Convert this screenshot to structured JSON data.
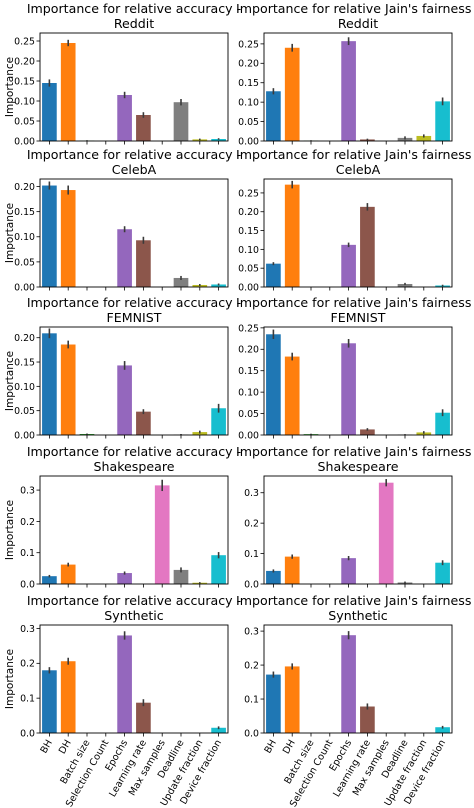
{
  "categories": [
    "BH",
    "DH",
    "Batch size",
    "Selection Count",
    "Epochs",
    "Learning rate",
    "Max samples",
    "Deadline",
    "Update fraction",
    "Device fraction"
  ],
  "colors": [
    "#1f77b4",
    "#ff7f0e",
    "#2ca02c",
    "#d62728",
    "#9467bd",
    "#8c564b",
    "#e377c2",
    "#7f7f7f",
    "#bcbd22",
    "#17becf"
  ],
  "ylabel": "Importance",
  "chart_data": [
    {
      "type": "bar",
      "title_line1": "Importance for relative accuracy -",
      "title_line2": "Reddit",
      "ylabel": "Importance",
      "ylim": [
        0,
        0.27
      ],
      "yticks": [
        0.0,
        0.05,
        0.1,
        0.15,
        0.2,
        0.25
      ],
      "tick_labels": [
        "0.00",
        "0.05",
        "0.10",
        "0.15",
        "0.20",
        "0.25"
      ],
      "values": [
        0.145,
        0.245,
        0.001,
        0.0,
        0.115,
        0.065,
        0.0,
        0.097,
        0.004,
        0.005
      ],
      "errors": [
        0.009,
        0.008,
        0.001,
        0.0,
        0.008,
        0.007,
        0.0,
        0.008,
        0.002,
        0.002
      ]
    },
    {
      "type": "bar",
      "title_line1": "Importance for relative Jain's fairness -",
      "title_line2": "Reddit",
      "ylabel": "",
      "ylim": [
        0,
        0.278
      ],
      "yticks": [
        0.0,
        0.05,
        0.1,
        0.15,
        0.2,
        0.25
      ],
      "tick_labels": [
        "0.00",
        "0.05",
        "0.10",
        "0.15",
        "0.20",
        "0.25"
      ],
      "values": [
        0.128,
        0.24,
        0.001,
        0.0,
        0.257,
        0.004,
        0.0,
        0.008,
        0.013,
        0.102
      ],
      "errors": [
        0.008,
        0.01,
        0.001,
        0.0,
        0.01,
        0.002,
        0.0,
        0.004,
        0.004,
        0.01
      ]
    },
    {
      "type": "bar",
      "title_line1": "Importance for relative accuracy -",
      "title_line2": "CelebA",
      "ylabel": "Importance",
      "ylim": [
        0,
        0.215
      ],
      "yticks": [
        0.0,
        0.05,
        0.1,
        0.15,
        0.2
      ],
      "tick_labels": [
        "0.00",
        "0.05",
        "0.10",
        "0.15",
        "0.20"
      ],
      "values": [
        0.202,
        0.193,
        0.0,
        0.0,
        0.115,
        0.093,
        0.0,
        0.018,
        0.004,
        0.005
      ],
      "errors": [
        0.008,
        0.009,
        0.0,
        0.0,
        0.006,
        0.007,
        0.0,
        0.004,
        0.002,
        0.002
      ]
    },
    {
      "type": "bar",
      "title_line1": "Importance for relative Jain's fairness -",
      "title_line2": "CelebA",
      "ylabel": "",
      "ylim": [
        0,
        0.287
      ],
      "yticks": [
        0.0,
        0.05,
        0.1,
        0.15,
        0.2,
        0.25
      ],
      "tick_labels": [
        "0.00",
        "0.05",
        "0.10",
        "0.15",
        "0.20",
        "0.25"
      ],
      "values": [
        0.062,
        0.272,
        0.0,
        0.0,
        0.112,
        0.213,
        0.0,
        0.008,
        0.0,
        0.004
      ],
      "errors": [
        0.004,
        0.01,
        0.0,
        0.0,
        0.006,
        0.01,
        0.0,
        0.003,
        0.0,
        0.002
      ]
    },
    {
      "type": "bar",
      "title_line1": "Importance for relative accuracy -",
      "title_line2": "FEMNIST",
      "ylabel": "Importance",
      "ylim": [
        0,
        0.222
      ],
      "yticks": [
        0.0,
        0.05,
        0.1,
        0.15,
        0.2
      ],
      "tick_labels": [
        "0.00",
        "0.05",
        "0.10",
        "0.15",
        "0.20"
      ],
      "values": [
        0.209,
        0.186,
        0.002,
        0.0,
        0.143,
        0.048,
        0.0,
        0.001,
        0.006,
        0.055
      ],
      "errors": [
        0.01,
        0.008,
        0.001,
        0.0,
        0.009,
        0.005,
        0.0,
        0.001,
        0.003,
        0.009
      ]
    },
    {
      "type": "bar",
      "title_line1": "Importance for relative Jain's fairness -",
      "title_line2": "FEMNIST",
      "ylabel": "",
      "ylim": [
        0,
        0.252
      ],
      "yticks": [
        0.0,
        0.05,
        0.1,
        0.15,
        0.2,
        0.25
      ],
      "tick_labels": [
        "0.00",
        "0.05",
        "0.10",
        "0.15",
        "0.20",
        "0.25"
      ],
      "values": [
        0.235,
        0.183,
        0.002,
        0.0,
        0.214,
        0.013,
        0.0,
        0.001,
        0.006,
        0.052
      ],
      "errors": [
        0.011,
        0.009,
        0.001,
        0.0,
        0.01,
        0.003,
        0.0,
        0.001,
        0.003,
        0.008
      ]
    },
    {
      "type": "bar",
      "title_line1": "Importance for relative accuracy -",
      "title_line2": "Shakespeare",
      "ylabel": "Importance",
      "ylim": [
        0,
        0.345
      ],
      "yticks": [
        0.0,
        0.1,
        0.2,
        0.3
      ],
      "tick_labels": [
        "0.0",
        "0.1",
        "0.2",
        "0.3"
      ],
      "values": [
        0.025,
        0.062,
        0.0,
        0.0,
        0.035,
        0.0,
        0.315,
        0.045,
        0.004,
        0.092
      ],
      "errors": [
        0.004,
        0.006,
        0.0,
        0.0,
        0.005,
        0.0,
        0.018,
        0.008,
        0.002,
        0.01
      ]
    },
    {
      "type": "bar",
      "title_line1": "Importance for relative Jain's fairness -",
      "title_line2": "Shakespeare",
      "ylabel": "",
      "ylim": [
        0,
        0.355
      ],
      "yticks": [
        0.0,
        0.1,
        0.2,
        0.3
      ],
      "tick_labels": [
        "0.0",
        "0.1",
        "0.2",
        "0.3"
      ],
      "values": [
        0.043,
        0.09,
        0.0,
        0.0,
        0.085,
        0.0,
        0.333,
        0.005,
        0.0,
        0.07
      ],
      "errors": [
        0.005,
        0.007,
        0.0,
        0.0,
        0.007,
        0.0,
        0.012,
        0.003,
        0.0,
        0.008
      ]
    },
    {
      "type": "bar",
      "title_line1": "Importance for relative accuracy -",
      "title_line2": "Synthetic",
      "ylabel": "Importance",
      "ylim": [
        0,
        0.31
      ],
      "yticks": [
        0.0,
        0.1,
        0.2,
        0.3
      ],
      "tick_labels": [
        "0.0",
        "0.1",
        "0.2",
        "0.3"
      ],
      "values": [
        0.18,
        0.206,
        0.0,
        0.0,
        0.28,
        0.087,
        0.0,
        0.0,
        0.0,
        0.015
      ],
      "errors": [
        0.009,
        0.01,
        0.0,
        0.0,
        0.012,
        0.01,
        0.0,
        0.0,
        0.0,
        0.004
      ]
    },
    {
      "type": "bar",
      "title_line1": "Importance for relative Jain's fairness -",
      "title_line2": "Synthetic",
      "ylabel": "",
      "ylim": [
        0,
        0.318
      ],
      "yticks": [
        0.0,
        0.1,
        0.2,
        0.3
      ],
      "tick_labels": [
        "0.0",
        "0.1",
        "0.2",
        "0.3"
      ],
      "values": [
        0.172,
        0.196,
        0.0,
        0.0,
        0.288,
        0.078,
        0.0,
        0.0,
        0.0,
        0.017
      ],
      "errors": [
        0.009,
        0.009,
        0.0,
        0.0,
        0.012,
        0.009,
        0.0,
        0.0,
        0.0,
        0.004
      ]
    }
  ]
}
